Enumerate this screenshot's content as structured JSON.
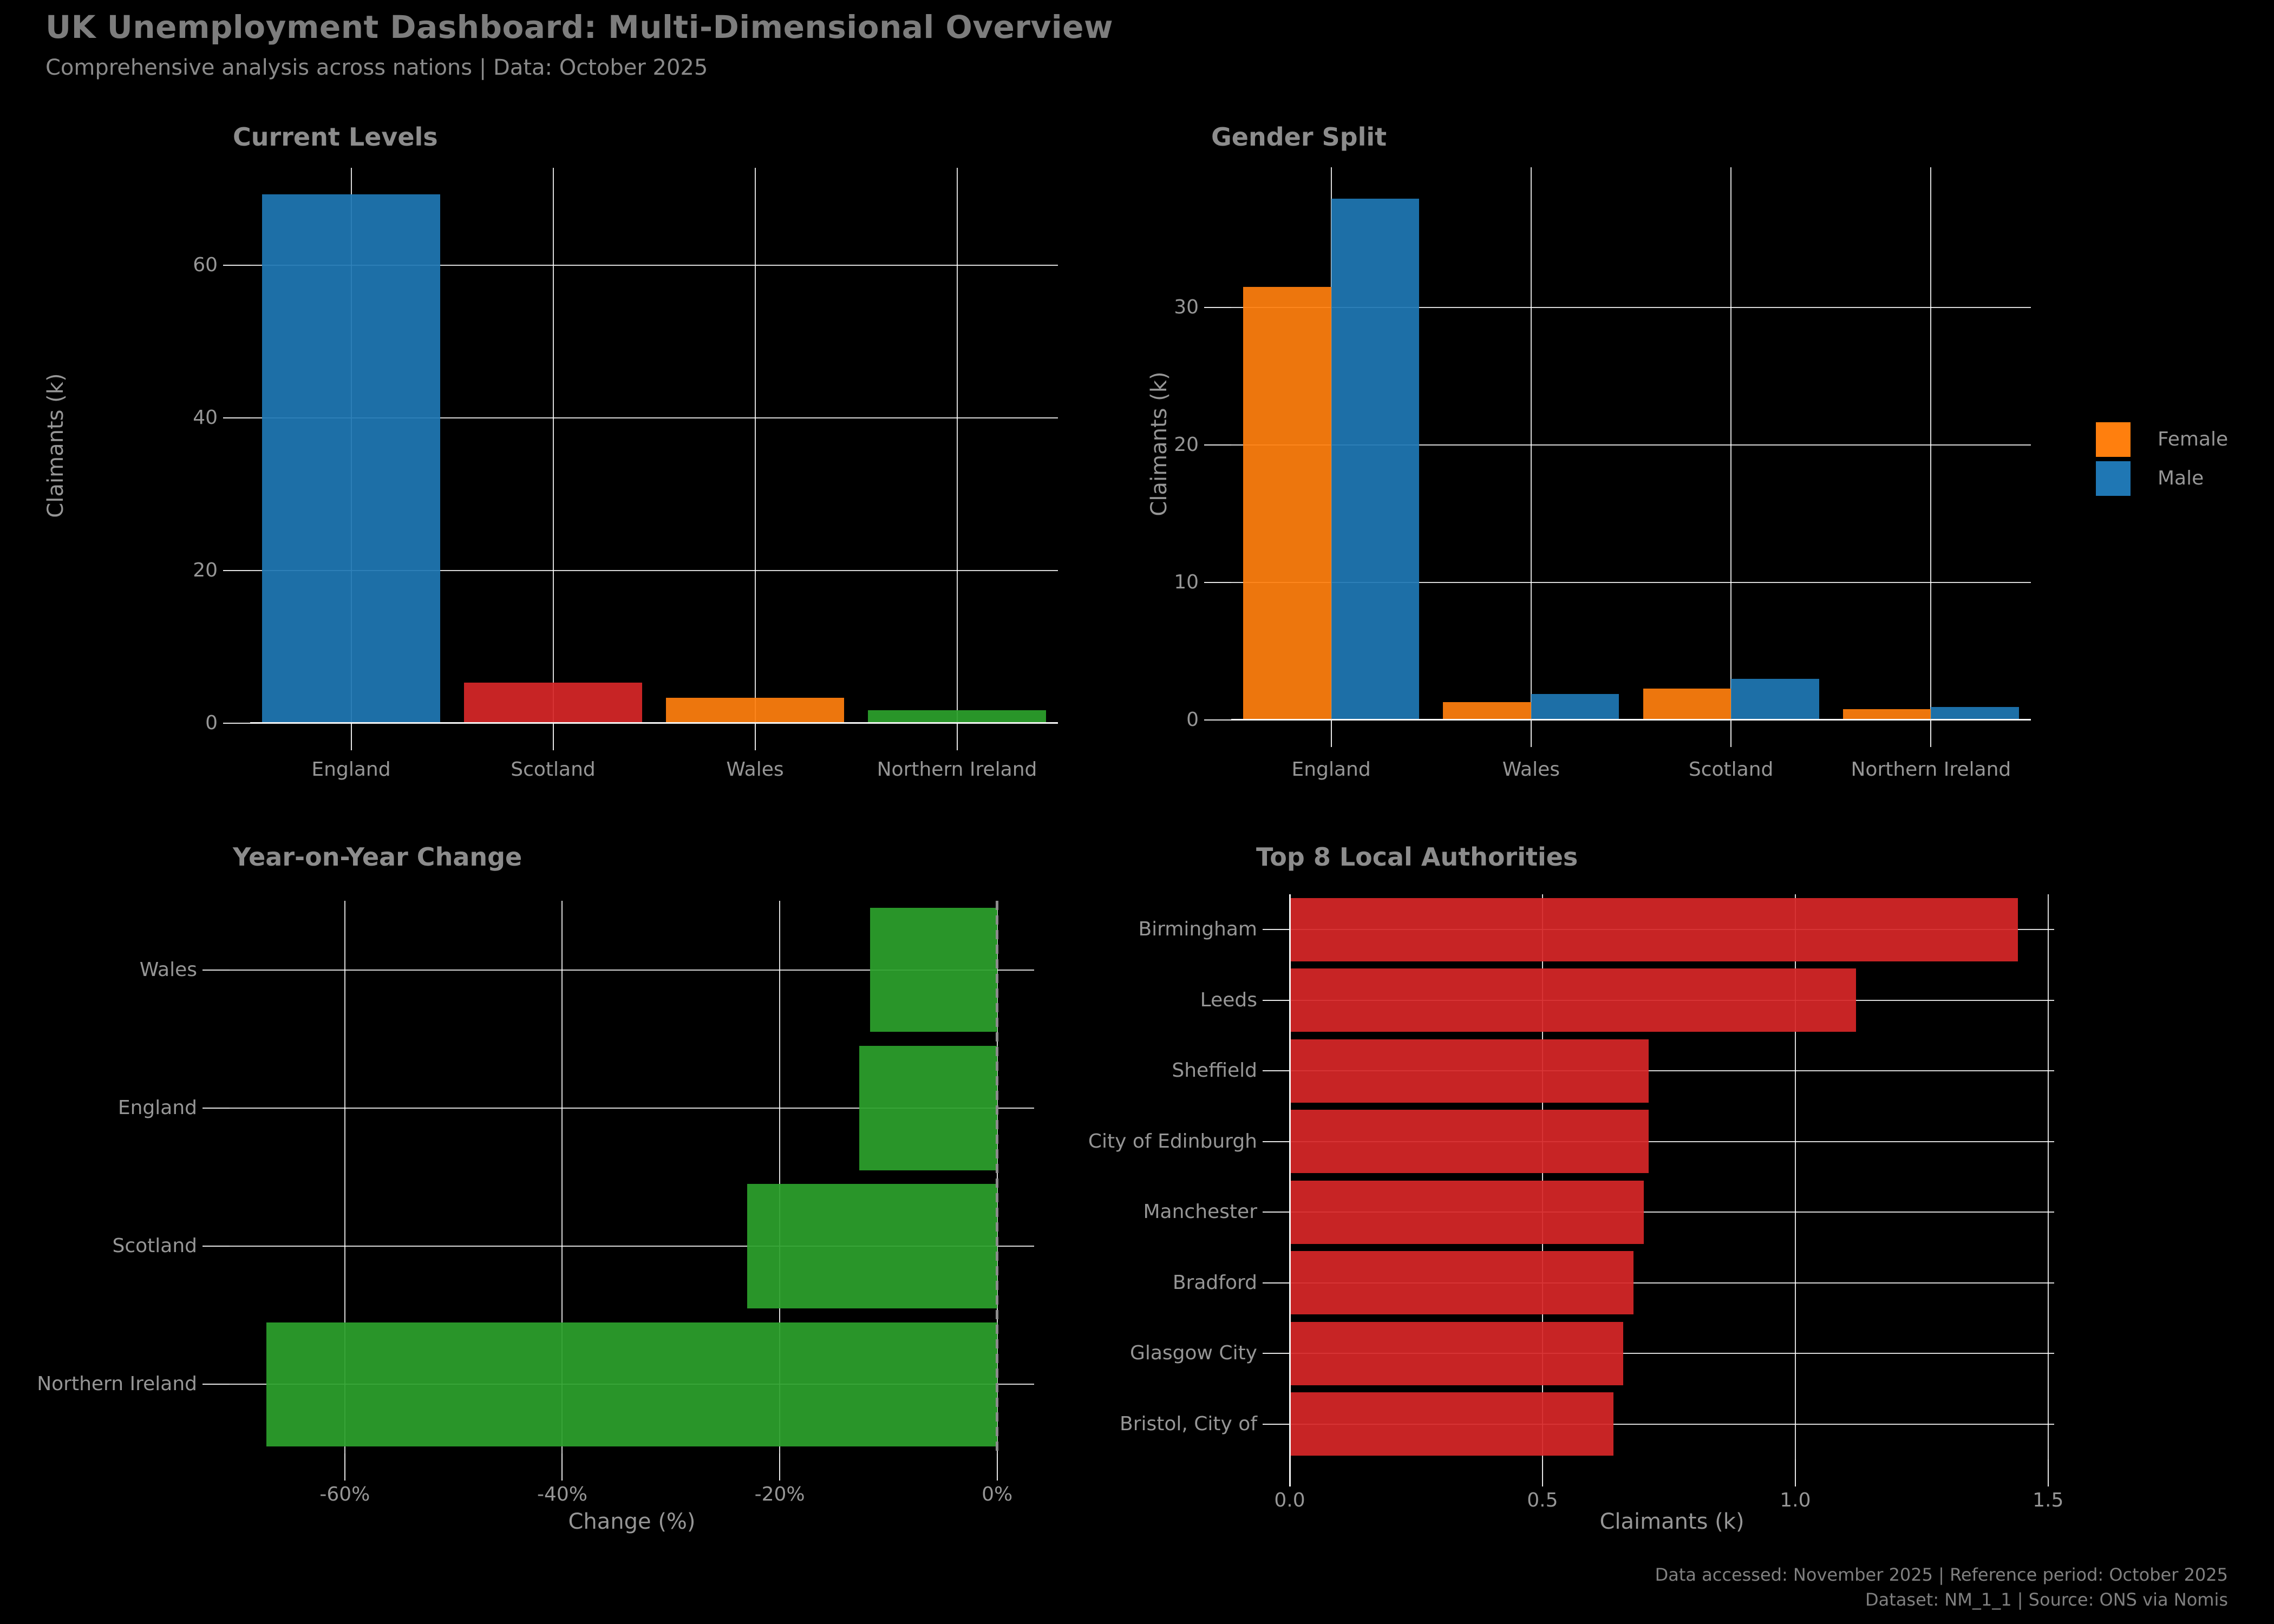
{
  "header": {
    "title": "UK Unemployment Dashboard: Multi-Dimensional Overview",
    "subtitle": "Comprehensive analysis across nations | Data: October 2025"
  },
  "footer": {
    "line1": "Data accessed: November 2025 | Reference period: October 2025",
    "line2": "Dataset: NM_1_1 | Source: ONS via Nomis"
  },
  "colors": {
    "background": "#000000",
    "grid": "#ffffff",
    "text": "#969696",
    "title_text": "#8c8c8c",
    "blue": "#1f77b4",
    "orange": "#ff7f0e",
    "red": "#d62728",
    "green": "#2ca02c",
    "zero_line": "#8c8c8c"
  },
  "chart_data": [
    {
      "type": "bar",
      "title": "Current Levels",
      "ylabel": "Claimants (k)",
      "categories": [
        "England",
        "Scotland",
        "Wales",
        "Northern Ireland"
      ],
      "values": [
        69.3,
        5.3,
        3.3,
        1.7
      ],
      "bar_colors": [
        "#1f77b4",
        "#d62728",
        "#ff7f0e",
        "#2ca02c"
      ],
      "yticks": [
        0,
        20,
        40,
        60
      ],
      "ytick_labels": [
        "0",
        "20",
        "40",
        "60"
      ],
      "ylim": [
        0,
        72.8
      ],
      "grid": true
    },
    {
      "type": "grouped_bar",
      "title": "Gender Split",
      "ylabel": "Claimants (k)",
      "categories": [
        "England",
        "Wales",
        "Scotland",
        "Northern Ireland"
      ],
      "series": [
        {
          "name": "Female",
          "color": "#ff7f0e",
          "values": [
            31.5,
            1.3,
            2.3,
            0.8
          ]
        },
        {
          "name": "Male",
          "color": "#1f77b4",
          "values": [
            37.9,
            1.9,
            3.0,
            0.95
          ]
        }
      ],
      "yticks": [
        0,
        10,
        20,
        30
      ],
      "ytick_labels": [
        "0",
        "10",
        "20",
        "30"
      ],
      "ylim": [
        0,
        40.2
      ],
      "legend_position": "right",
      "grid": true
    },
    {
      "type": "barh",
      "title": "Year-on-Year Change",
      "xlabel": "Change (%)",
      "categories": [
        "Wales",
        "England",
        "Scotland",
        "Northern Ireland"
      ],
      "values": [
        -11.7,
        -12.7,
        -23.0,
        -67.2
      ],
      "bar_color": "#2ca02c",
      "xticks": [
        -60,
        -40,
        -20,
        0
      ],
      "xtick_labels": [
        "-60%",
        "-40%",
        "-20%",
        "0%"
      ],
      "xlim": [
        -70.6,
        3.4
      ],
      "zero_line": "dashed-gray",
      "grid": true
    },
    {
      "type": "barh",
      "title": "Top 8 Local Authorities",
      "xlabel": "Claimants (k)",
      "categories": [
        "Birmingham",
        "Leeds",
        "Sheffield",
        "City of Edinburgh",
        "Manchester",
        "Bradford",
        "Glasgow City",
        "Bristol, City of"
      ],
      "values": [
        1.44,
        1.12,
        0.71,
        0.71,
        0.7,
        0.68,
        0.66,
        0.64
      ],
      "bar_color": "#d62728",
      "xticks": [
        0.0,
        0.5,
        1.0,
        1.5
      ],
      "xtick_labels": [
        "0.0",
        "0.5",
        "1.0",
        "1.5"
      ],
      "xlim": [
        0,
        1.512
      ],
      "left_spine": true,
      "grid": true
    }
  ]
}
